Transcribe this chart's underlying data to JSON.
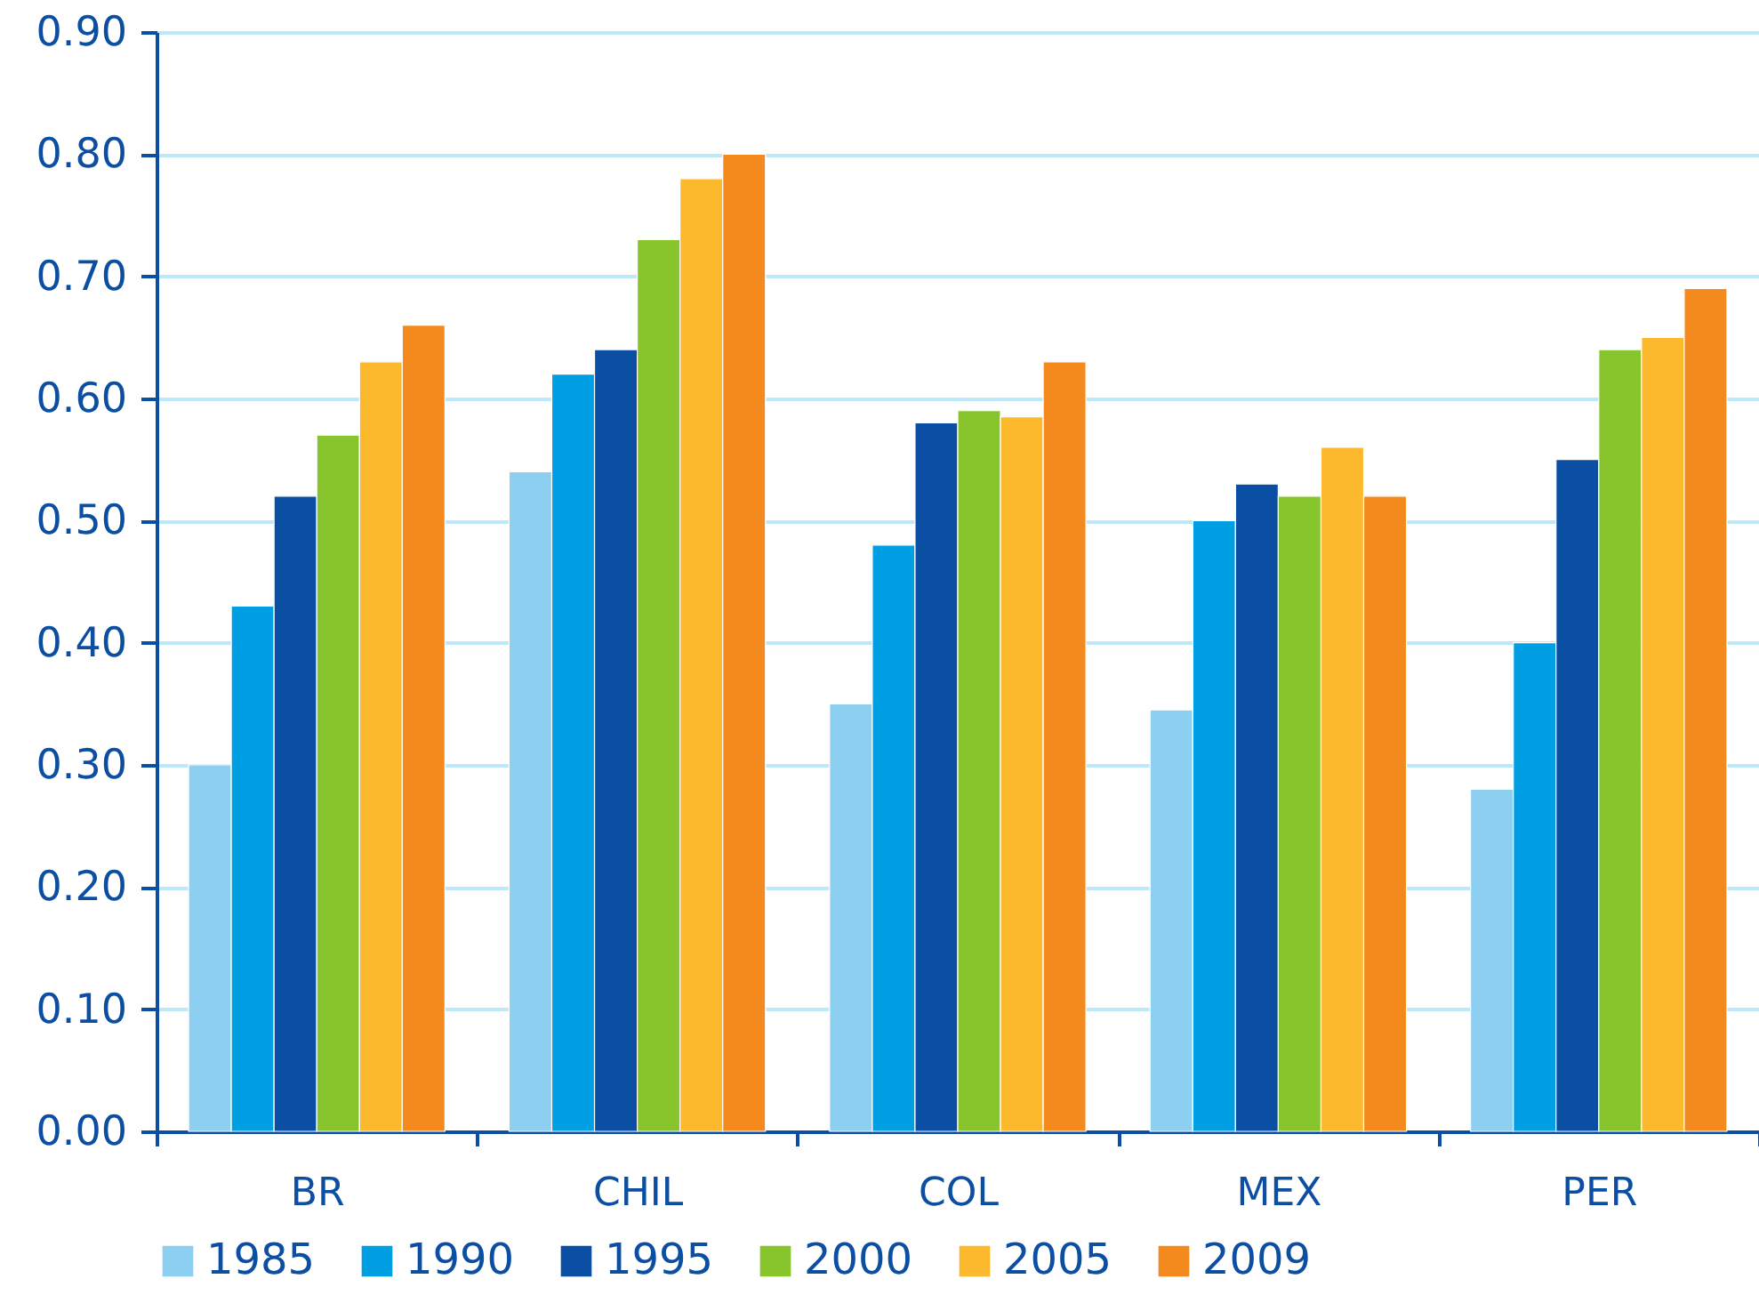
{
  "chart_data": {
    "type": "bar",
    "categories": [
      "BR",
      "CHIL",
      "COL",
      "MEX",
      "PER"
    ],
    "series": [
      {
        "name": "1985",
        "color": "#8ccff0",
        "values": [
          0.3,
          0.54,
          0.35,
          0.345,
          0.28
        ]
      },
      {
        "name": "1990",
        "color": "#009fe3",
        "values": [
          0.43,
          0.62,
          0.48,
          0.5,
          0.4
        ]
      },
      {
        "name": "1995",
        "color": "#0a4fa3",
        "values": [
          0.52,
          0.64,
          0.58,
          0.53,
          0.55
        ]
      },
      {
        "name": "2000",
        "color": "#88c52d",
        "values": [
          0.57,
          0.73,
          0.59,
          0.52,
          0.64
        ]
      },
      {
        "name": "2005",
        "color": "#fdb92e",
        "values": [
          0.63,
          0.78,
          0.585,
          0.56,
          0.65
        ]
      },
      {
        "name": "2009",
        "color": "#f48a1e",
        "values": [
          0.66,
          0.8,
          0.63,
          0.52,
          0.69
        ]
      }
    ],
    "ylim": [
      0,
      0.9
    ],
    "yticks": [
      {
        "value": 0,
        "label": "0.00"
      },
      {
        "value": 0.1,
        "label": "0.10"
      },
      {
        "value": 0.2,
        "label": "0.20"
      },
      {
        "value": 0.3,
        "label": "0.30"
      },
      {
        "value": 0.4,
        "label": "0.40"
      },
      {
        "value": 0.5,
        "label": "0.50"
      },
      {
        "value": 0.6,
        "label": "0.60"
      },
      {
        "value": 0.7,
        "label": "0.70"
      },
      {
        "value": 0.8,
        "label": "0.80"
      },
      {
        "value": 0.9,
        "label": "0.90"
      }
    ],
    "grid": "y",
    "legend": "bottom"
  }
}
